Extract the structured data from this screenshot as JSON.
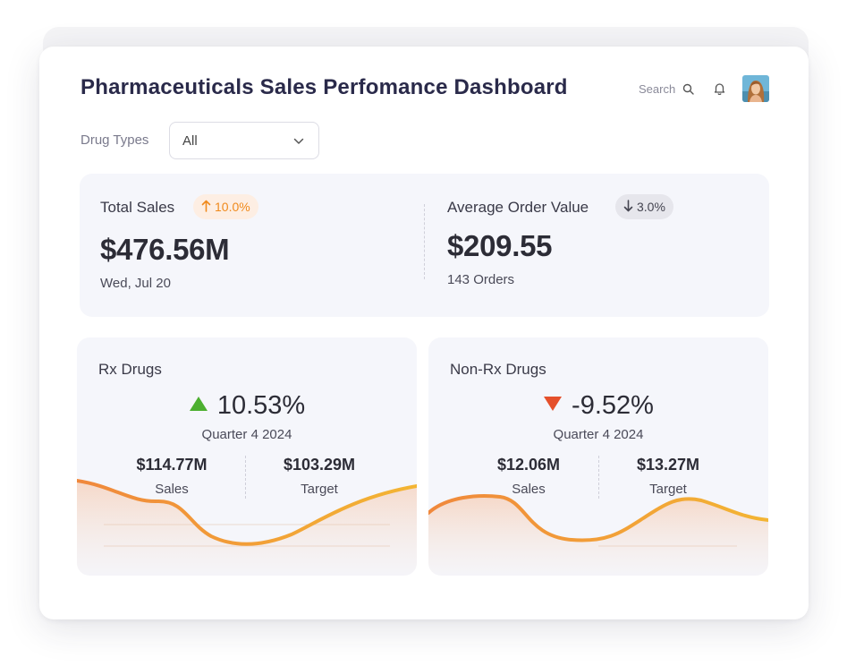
{
  "header": {
    "title": "Pharmaceuticals Sales Perfomance Dashboard",
    "search_label": "Search",
    "icons": {
      "search": "search-icon",
      "notifications": "bell-icon",
      "avatar": "user-avatar"
    }
  },
  "filter": {
    "label": "Drug Types",
    "selected": "All"
  },
  "kpis": {
    "total_sales": {
      "label": "Total Sales",
      "change": "10.0%",
      "direction": "up",
      "value": "$476.56M",
      "subtext": "Wed, Jul 20"
    },
    "average_order_value": {
      "label": "Average Order Value",
      "change": "3.0%",
      "direction": "down",
      "value": "$209.55",
      "subtext": "143 Orders"
    }
  },
  "segments": {
    "rx": {
      "title": "Rx Drugs",
      "change": "10.53%",
      "direction": "up",
      "period": "Quarter 4 2024",
      "sales_value": "$114.77M",
      "sales_label": "Sales",
      "target_value": "$103.29M",
      "target_label": "Target"
    },
    "non_rx": {
      "title": "Non-Rx Drugs",
      "change": "-9.52%",
      "direction": "down",
      "period": "Quarter 4 2024",
      "sales_value": "$12.06M",
      "sales_label": "Sales",
      "target_value": "$13.27M",
      "target_label": "Target"
    }
  },
  "colors": {
    "up_badge": "#f08a1c",
    "up_arrow": "#4caf30",
    "down_arrow": "#e5502b",
    "trend_line": "#f2a33a"
  }
}
